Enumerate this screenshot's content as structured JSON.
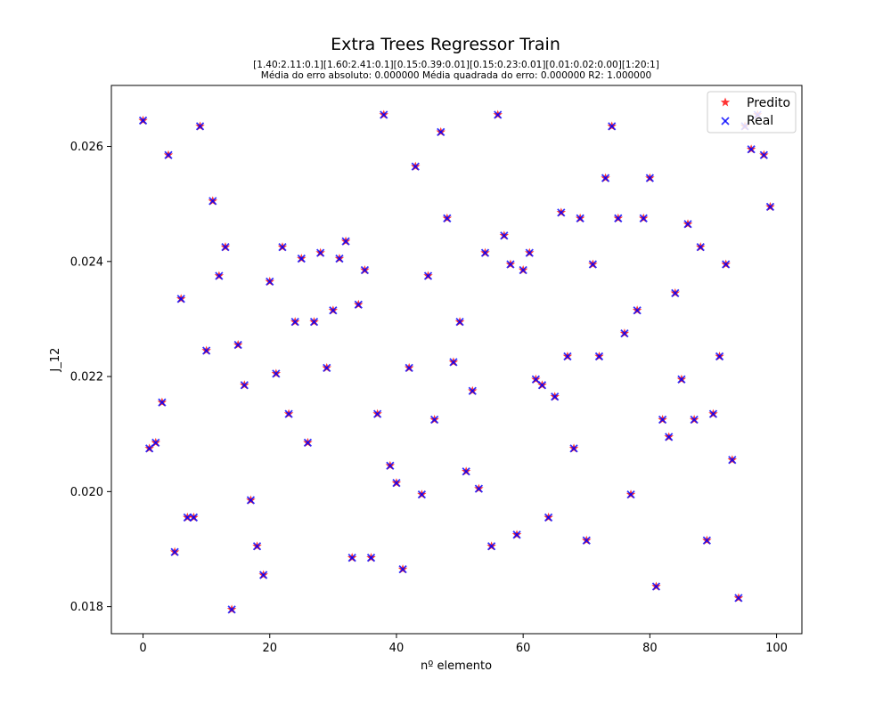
{
  "chart_data": {
    "type": "scatter",
    "title": "Extra Trees Regressor Train",
    "subtitle_line1": "[1.40:2.11:0.1][1.60:2.41:0.1][0.15:0.39:0.01][0.15:0.23:0.01][0.01:0.02:0.00][1:20:1]",
    "subtitle_line2": "Média do erro absoluto: 0.000000 Média quadrada do erro: 0.000000 R2: 1.000000",
    "xlabel": "nº elemento",
    "ylabel": "J_12",
    "xlim": [
      -5,
      104
    ],
    "ylim": [
      0.01753,
      0.02706
    ],
    "xticks": [
      0,
      20,
      40,
      60,
      80,
      100
    ],
    "xtick_labels": [
      "0",
      "20",
      "40",
      "60",
      "80",
      "100"
    ],
    "yticks": [
      0.018,
      0.02,
      0.022,
      0.024,
      0.026
    ],
    "ytick_labels": [
      "0.018",
      "0.020",
      "0.022",
      "0.024",
      "0.026"
    ],
    "grid": false,
    "legend_position": "top-right",
    "series": [
      {
        "name": "Predito",
        "marker": "star",
        "color": "#ff0000",
        "x": [
          0,
          1,
          2,
          3,
          4,
          5,
          6,
          7,
          8,
          9,
          10,
          11,
          12,
          13,
          14,
          15,
          16,
          17,
          18,
          19,
          20,
          21,
          22,
          23,
          24,
          25,
          26,
          27,
          28,
          29,
          30,
          31,
          32,
          33,
          34,
          35,
          36,
          37,
          38,
          39,
          40,
          41,
          42,
          43,
          44,
          45,
          46,
          47,
          48,
          49,
          50,
          51,
          52,
          53,
          54,
          55,
          56,
          57,
          58,
          59,
          60,
          61,
          62,
          63,
          64,
          65,
          66,
          67,
          68,
          69,
          70,
          71,
          72,
          73,
          74,
          75,
          76,
          77,
          78,
          79,
          80,
          81,
          82,
          83,
          84,
          85,
          86,
          87,
          88,
          89,
          90,
          91,
          92,
          93,
          94,
          95,
          96,
          97,
          98,
          99
        ],
        "y": [
          0.02645,
          0.02075,
          0.02085,
          0.02155,
          0.02585,
          0.01895,
          0.02335,
          0.01955,
          0.01955,
          0.02635,
          0.02245,
          0.02505,
          0.02375,
          0.02425,
          0.01795,
          0.02255,
          0.02185,
          0.01985,
          0.01905,
          0.01855,
          0.02365,
          0.02205,
          0.02425,
          0.02135,
          0.02295,
          0.02405,
          0.02085,
          0.02295,
          0.02415,
          0.02215,
          0.02315,
          0.02405,
          0.02435,
          0.01885,
          0.02325,
          0.02385,
          0.01885,
          0.02135,
          0.02655,
          0.02045,
          0.02015,
          0.01865,
          0.02215,
          0.02565,
          0.01995,
          0.02375,
          0.02125,
          0.02625,
          0.02475,
          0.02225,
          0.02295,
          0.02035,
          0.02175,
          0.02005,
          0.02415,
          0.01905,
          0.02655,
          0.02445,
          0.02395,
          0.01925,
          0.02385,
          0.02415,
          0.02195,
          0.02185,
          0.01955,
          0.02165,
          0.02485,
          0.02235,
          0.02075,
          0.02475,
          0.01915,
          0.02395,
          0.02235,
          0.02545,
          0.02635,
          0.02475,
          0.02275,
          0.01995,
          0.02315,
          0.02475,
          0.02545,
          0.01835,
          0.02125,
          0.02095,
          0.02345,
          0.02195,
          0.02465,
          0.02125,
          0.02425,
          0.01915,
          0.02135,
          0.02235,
          0.02395,
          0.02055,
          0.01815,
          0.02635,
          0.02595,
          0.02655,
          0.02585,
          0.02495
        ]
      },
      {
        "name": "Real",
        "marker": "x",
        "color": "#0000ff",
        "x": [
          0,
          1,
          2,
          3,
          4,
          5,
          6,
          7,
          8,
          9,
          10,
          11,
          12,
          13,
          14,
          15,
          16,
          17,
          18,
          19,
          20,
          21,
          22,
          23,
          24,
          25,
          26,
          27,
          28,
          29,
          30,
          31,
          32,
          33,
          34,
          35,
          36,
          37,
          38,
          39,
          40,
          41,
          42,
          43,
          44,
          45,
          46,
          47,
          48,
          49,
          50,
          51,
          52,
          53,
          54,
          55,
          56,
          57,
          58,
          59,
          60,
          61,
          62,
          63,
          64,
          65,
          66,
          67,
          68,
          69,
          70,
          71,
          72,
          73,
          74,
          75,
          76,
          77,
          78,
          79,
          80,
          81,
          82,
          83,
          84,
          85,
          86,
          87,
          88,
          89,
          90,
          91,
          92,
          93,
          94,
          95,
          96,
          97,
          98,
          99
        ],
        "y": [
          0.02645,
          0.02075,
          0.02085,
          0.02155,
          0.02585,
          0.01895,
          0.02335,
          0.01955,
          0.01955,
          0.02635,
          0.02245,
          0.02505,
          0.02375,
          0.02425,
          0.01795,
          0.02255,
          0.02185,
          0.01985,
          0.01905,
          0.01855,
          0.02365,
          0.02205,
          0.02425,
          0.02135,
          0.02295,
          0.02405,
          0.02085,
          0.02295,
          0.02415,
          0.02215,
          0.02315,
          0.02405,
          0.02435,
          0.01885,
          0.02325,
          0.02385,
          0.01885,
          0.02135,
          0.02655,
          0.02045,
          0.02015,
          0.01865,
          0.02215,
          0.02565,
          0.01995,
          0.02375,
          0.02125,
          0.02625,
          0.02475,
          0.02225,
          0.02295,
          0.02035,
          0.02175,
          0.02005,
          0.02415,
          0.01905,
          0.02655,
          0.02445,
          0.02395,
          0.01925,
          0.02385,
          0.02415,
          0.02195,
          0.02185,
          0.01955,
          0.02165,
          0.02485,
          0.02235,
          0.02075,
          0.02475,
          0.01915,
          0.02395,
          0.02235,
          0.02545,
          0.02635,
          0.02475,
          0.02275,
          0.01995,
          0.02315,
          0.02475,
          0.02545,
          0.01835,
          0.02125,
          0.02095,
          0.02345,
          0.02195,
          0.02465,
          0.02125,
          0.02425,
          0.01915,
          0.02135,
          0.02235,
          0.02395,
          0.02055,
          0.01815,
          0.02635,
          0.02595,
          0.02655,
          0.02585,
          0.02495
        ]
      }
    ]
  }
}
